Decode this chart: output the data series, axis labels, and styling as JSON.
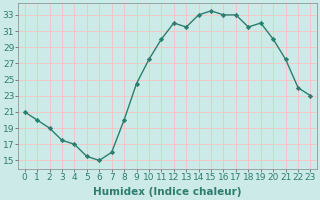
{
  "x": [
    0,
    1,
    2,
    3,
    4,
    5,
    6,
    7,
    8,
    9,
    10,
    11,
    12,
    13,
    14,
    15,
    16,
    17,
    18,
    19,
    20,
    21,
    22,
    23
  ],
  "y": [
    21,
    20,
    19,
    17.5,
    17,
    15.5,
    15,
    16,
    20,
    24.5,
    27.5,
    30,
    32,
    31.5,
    33,
    33.5,
    33,
    33,
    31.5,
    32,
    30,
    27.5,
    24,
    23
  ],
  "line_color": "#2e7d6e",
  "marker": "D",
  "marker_size": 2.2,
  "background_color": "#cceae8",
  "grid_color": "#f0c8c8",
  "xlabel": "Humidex (Indice chaleur)",
  "xlabel_fontsize": 7.5,
  "ylabel_ticks": [
    15,
    17,
    19,
    21,
    23,
    25,
    27,
    29,
    31,
    33
  ],
  "xtick_labels": [
    "0",
    "1",
    "2",
    "3",
    "4",
    "5",
    "6",
    "7",
    "8",
    "9",
    "10",
    "11",
    "12",
    "13",
    "14",
    "15",
    "16",
    "17",
    "18",
    "19",
    "20",
    "21",
    "22",
    "23"
  ],
  "xlim": [
    -0.5,
    23.5
  ],
  "ylim": [
    14,
    34.5
  ],
  "tick_fontsize": 6.5,
  "linewidth": 1.0
}
